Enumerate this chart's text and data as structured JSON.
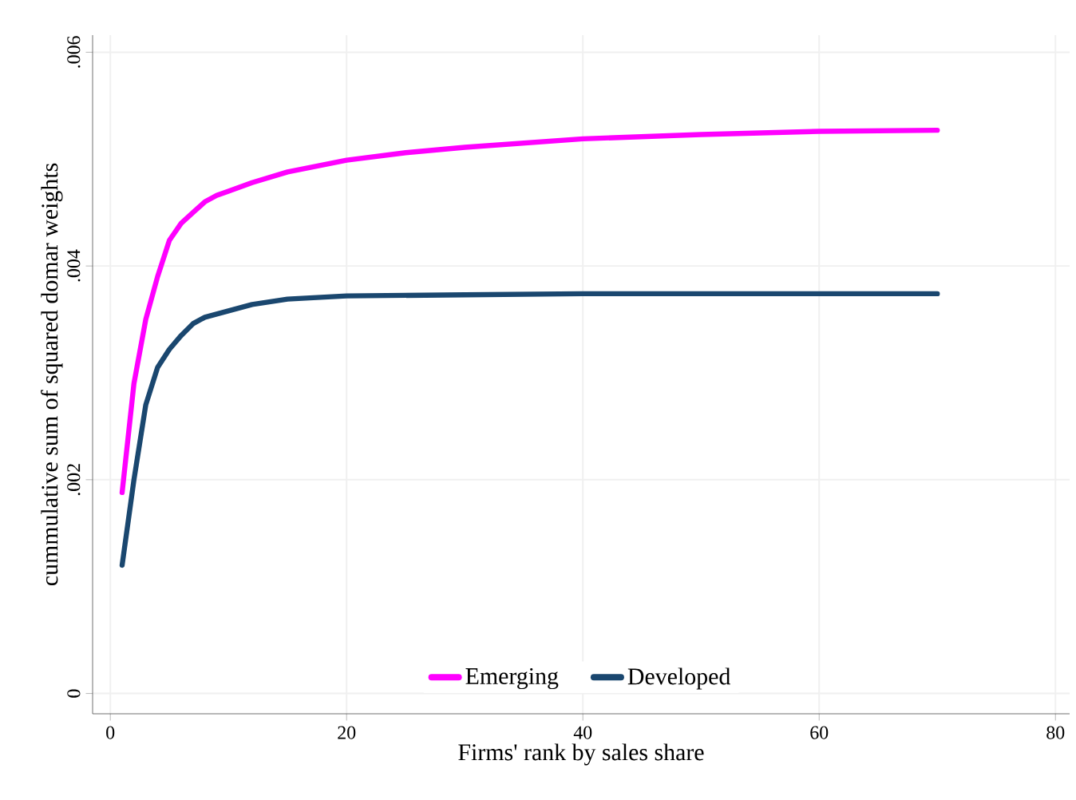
{
  "chart_data": {
    "type": "line",
    "xlabel": "Firms' rank by sales share",
    "ylabel": "cummulative sum of squared domar weights",
    "series": [
      {
        "name": "Emerging",
        "color": "#ff00ff",
        "x": [
          1,
          2,
          3,
          4,
          5,
          6,
          7,
          8,
          9,
          10,
          12,
          15,
          20,
          25,
          30,
          40,
          50,
          60,
          70
        ],
        "values": [
          0.00188,
          0.0029,
          0.0035,
          0.0039,
          0.00424,
          0.0044,
          0.0045,
          0.0046,
          0.00466,
          0.0047,
          0.00478,
          0.00488,
          0.00499,
          0.00506,
          0.00511,
          0.00519,
          0.00523,
          0.00526,
          0.00527
        ]
      },
      {
        "name": "Developed",
        "color": "#1a476f",
        "x": [
          1,
          2,
          3,
          4,
          5,
          6,
          7,
          8,
          10,
          12,
          15,
          20,
          30,
          40,
          70
        ],
        "values": [
          0.0012,
          0.002,
          0.0027,
          0.00305,
          0.00322,
          0.00335,
          0.00346,
          0.00352,
          0.00358,
          0.00364,
          0.00369,
          0.00372,
          0.00373,
          0.00374,
          0.00374
        ]
      }
    ],
    "xlim": [
      -1.5,
      81.2
    ],
    "ylim": [
      -0.00019,
      0.00616
    ],
    "xticks": [
      0,
      20,
      40,
      60,
      80
    ],
    "yticks": [
      0,
      {
        "value": 0.002,
        "label": ".002"
      },
      {
        "value": 0.004,
        "label": ".004"
      },
      {
        "value": 0.006,
        "label": ".006"
      }
    ],
    "grid": true,
    "legend": "bottom"
  }
}
